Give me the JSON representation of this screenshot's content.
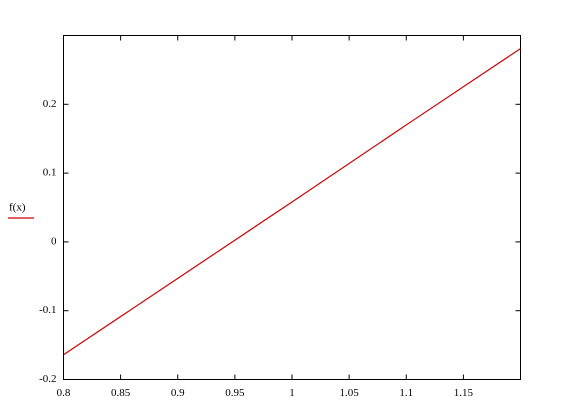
{
  "chart_data": {
    "type": "line",
    "x": [
      0.8,
      0.9,
      1.0,
      1.1,
      1.2
    ],
    "series": [
      {
        "name": "f(x)",
        "color": "#cc0000",
        "values": [
          -0.164,
          -0.053,
          0.058,
          0.17,
          0.281
        ]
      }
    ],
    "xlim": [
      0.8,
      1.2
    ],
    "xticks": [
      0.8,
      0.85,
      0.9,
      0.95,
      1,
      1.05,
      1.1,
      1.15
    ],
    "ylim": [
      -0.2,
      0.3
    ],
    "yticks": [
      -0.2,
      -0.1,
      0,
      0.1,
      0.2
    ],
    "grid": false
  }
}
